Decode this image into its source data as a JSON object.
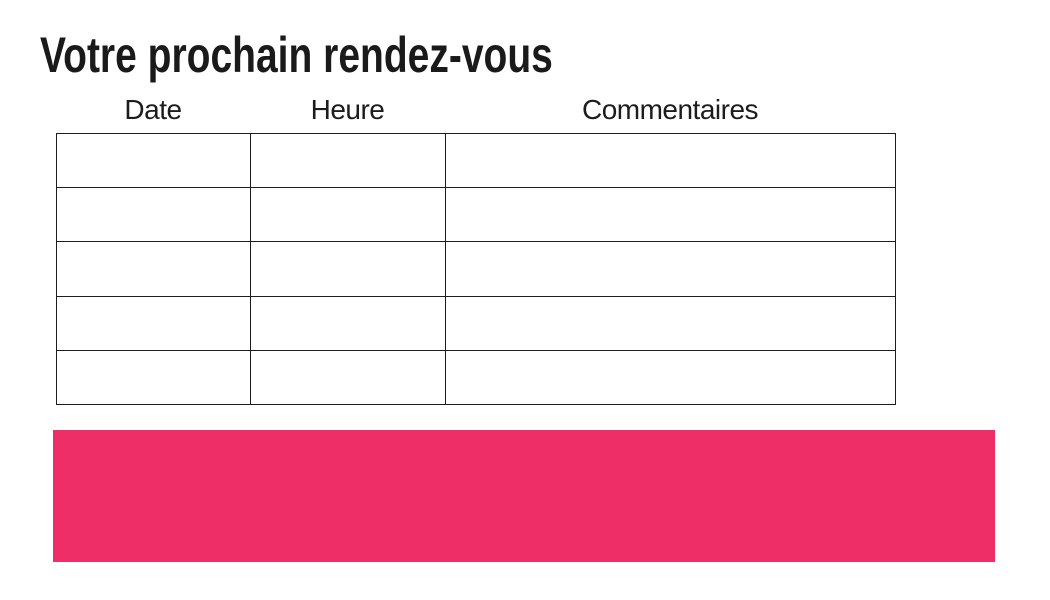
{
  "page": {
    "title": "Votre prochain rendez-vous",
    "background_color": "#ffffff"
  },
  "appointments_table": {
    "columns": [
      {
        "key": "date",
        "label": "Date"
      },
      {
        "key": "heure",
        "label": "Heure"
      },
      {
        "key": "commentaires",
        "label": "Commentaires"
      }
    ],
    "rows": [
      {
        "date": "",
        "heure": "",
        "commentaires": ""
      },
      {
        "date": "",
        "heure": "",
        "commentaires": ""
      },
      {
        "date": "",
        "heure": "",
        "commentaires": ""
      },
      {
        "date": "",
        "heure": "",
        "commentaires": ""
      },
      {
        "date": "",
        "heure": "",
        "commentaires": ""
      }
    ],
    "border_color": "#1d1d1d"
  },
  "footer": {
    "accent_bar_color": "#ED2E67"
  }
}
